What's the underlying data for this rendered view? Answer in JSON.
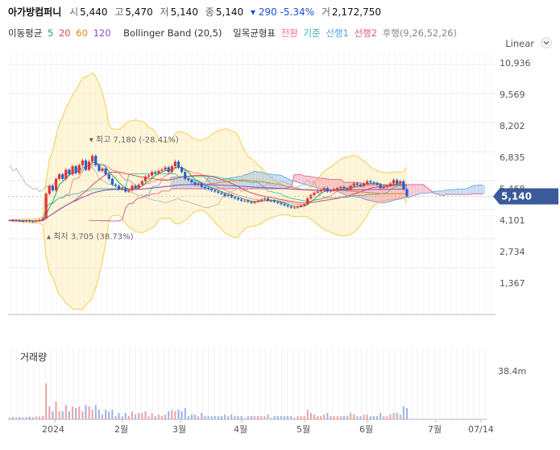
{
  "header": {
    "name": "아가방컴퍼니",
    "open_label": "시",
    "open": "5,440",
    "high_label": "고",
    "high": "5,470",
    "low_label": "저",
    "low": "5,140",
    "close_label": "종",
    "close": "5,140",
    "change": "▾ 290 -5.34%",
    "volume_label": "거",
    "volume": "2,172,750"
  },
  "legend": {
    "ma_label": "이동평균",
    "ma5": "5",
    "ma20": "20",
    "ma60": "60",
    "ma120": "120",
    "bollinger": "Bollinger Band (20,5)",
    "ichimoku": "일목균형표",
    "conv": "전환",
    "base": "기준",
    "lead1": "선행1",
    "lead2": "선행2",
    "lag": "후행(9,26,52,26)"
  },
  "scale_label": "Linear",
  "colors": {
    "up": "#e0343a",
    "down": "#1f63d0",
    "ma5": "#2aa36a",
    "ma20": "#e04a4a",
    "ma60": "#e08a2a",
    "ma120": "#8a4fd0",
    "bollinger": "#f2cf52",
    "conv": "#ff6b8b",
    "base": "#2fb6a6",
    "lead1": "#5aa2e0",
    "lead2": "#e05a8a",
    "lag": "#b0b0b0",
    "price_tag": "#3b5a9a"
  },
  "chart_data": {
    "type": "candlestick",
    "y_ticks": [
      "10,936",
      "9,569",
      "8,202",
      "6,835",
      "5,468",
      "4,101",
      "2,734",
      "1,367"
    ],
    "y_tick_values": [
      10936,
      9569,
      8202,
      6835,
      5468,
      4101,
      2734,
      1367
    ],
    "ylim": [
      0,
      11400
    ],
    "x_ticks": [
      "2024",
      "2월",
      "3월",
      "4월",
      "5월",
      "6월",
      "7월",
      "07/14"
    ],
    "current_price_label": "5,140",
    "current_price": 5140,
    "high_annotation": "최고 7,180 (-28.41%)",
    "low_annotation": "최저 3,705 (38.73%)",
    "high_value": 7180,
    "low_value": 3705,
    "volume_title": "거래량",
    "volume_tick": "38.4m",
    "closes": [
      4100,
      4080,
      4090,
      4070,
      4060,
      4085,
      4050,
      4040,
      4080,
      4120,
      4180,
      5250,
      5600,
      5400,
      5900,
      6100,
      5900,
      6300,
      6100,
      6450,
      6150,
      6500,
      6700,
      6300,
      6650,
      6900,
      6500,
      6250,
      6350,
      6100,
      5900,
      5650,
      5600,
      5450,
      5500,
      5350,
      5400,
      5600,
      5500,
      5650,
      5800,
      6000,
      6050,
      6200,
      6150,
      6250,
      6300,
      6400,
      6200,
      6450,
      6650,
      6400,
      6200,
      5900,
      5850,
      5750,
      5650,
      5700,
      5550,
      5500,
      5450,
      5400,
      5350,
      5300,
      5250,
      5150,
      5200,
      5100,
      5050,
      5000,
      4950,
      4950,
      4900,
      4850,
      4900,
      4950,
      5000,
      5050,
      4950,
      4950,
      4900,
      4850,
      4800,
      4750,
      4700,
      4650,
      4650,
      4700,
      4750,
      4800,
      5050,
      5200,
      5300,
      5350,
      5400,
      5500,
      5350,
      5400,
      5450,
      5500,
      5550,
      5500,
      5450,
      5600,
      5700,
      5650,
      5600,
      5700,
      5800,
      5750,
      5700,
      5650,
      5500,
      5550,
      5600,
      5700,
      5850,
      5700,
      5800,
      5440,
      5140
    ]
  }
}
